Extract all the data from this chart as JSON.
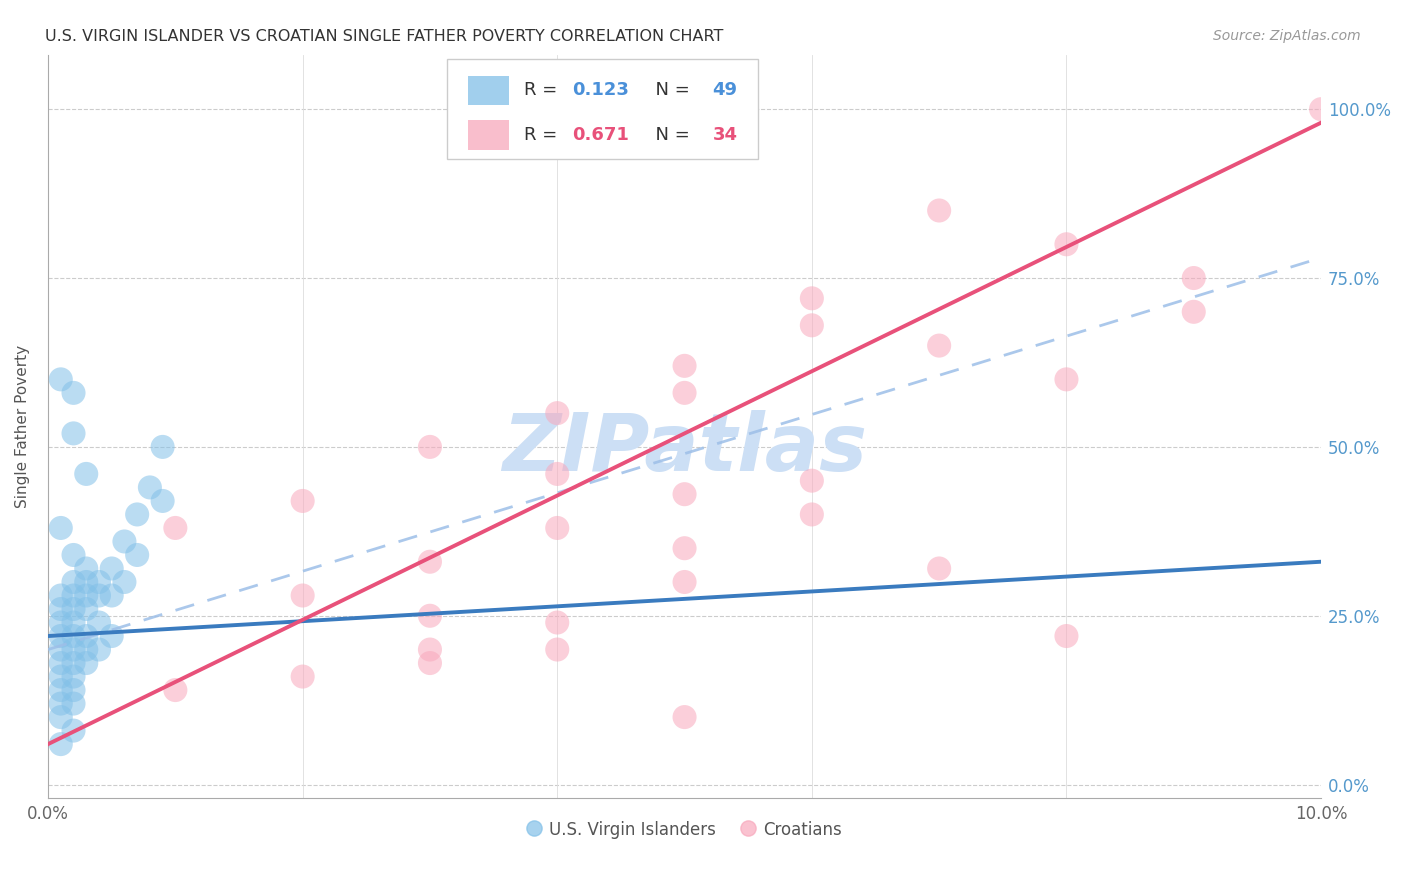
{
  "title": "U.S. VIRGIN ISLANDER VS CROATIAN SINGLE FATHER POVERTY CORRELATION CHART",
  "source": "Source: ZipAtlas.com",
  "ylabel": "Single Father Poverty",
  "ytick_labels": [
    "0.0%",
    "25.0%",
    "50.0%",
    "75.0%",
    "100.0%"
  ],
  "ytick_values": [
    0.0,
    0.25,
    0.5,
    0.75,
    1.0
  ],
  "xlim": [
    0.0,
    0.1
  ],
  "ylim": [
    -0.02,
    1.08
  ],
  "legend_bottom_label1": "U.S. Virgin Islanders",
  "legend_bottom_label2": "Croatians",
  "blue_color": "#82c0e8",
  "pink_color": "#f8a8bc",
  "blue_line_color": "#3a7bbf",
  "pink_line_color": "#e8517a",
  "dash_line_color": "#9dbfe8",
  "watermark": "ZIPatlas",
  "watermark_color": "#ccdff5",
  "blue_scatter_x": [
    0.001,
    0.001,
    0.001,
    0.001,
    0.001,
    0.001,
    0.001,
    0.001,
    0.001,
    0.002,
    0.002,
    0.002,
    0.002,
    0.002,
    0.002,
    0.002,
    0.002,
    0.002,
    0.002,
    0.003,
    0.003,
    0.003,
    0.003,
    0.003,
    0.003,
    0.003,
    0.004,
    0.004,
    0.004,
    0.004,
    0.005,
    0.005,
    0.005,
    0.006,
    0.006,
    0.007,
    0.007,
    0.008,
    0.009,
    0.009,
    0.001,
    0.002,
    0.001,
    0.002,
    0.001,
    0.002,
    0.003,
    0.001,
    0.002
  ],
  "blue_scatter_y": [
    0.2,
    0.22,
    0.24,
    0.26,
    0.28,
    0.18,
    0.16,
    0.14,
    0.12,
    0.22,
    0.24,
    0.26,
    0.28,
    0.3,
    0.2,
    0.18,
    0.16,
    0.14,
    0.12,
    0.26,
    0.28,
    0.3,
    0.32,
    0.22,
    0.2,
    0.18,
    0.3,
    0.28,
    0.24,
    0.2,
    0.32,
    0.28,
    0.22,
    0.36,
    0.3,
    0.4,
    0.34,
    0.44,
    0.5,
    0.42,
    0.6,
    0.58,
    0.1,
    0.08,
    0.06,
    0.52,
    0.46,
    0.38,
    0.34
  ],
  "pink_scatter_x": [
    0.04,
    0.04,
    0.04,
    0.05,
    0.05,
    0.05,
    0.06,
    0.06,
    0.07,
    0.07,
    0.08,
    0.08,
    0.09,
    0.03,
    0.03,
    0.03,
    0.02,
    0.02,
    0.01,
    0.01,
    0.1,
    0.09,
    0.06,
    0.05,
    0.04,
    0.03,
    0.07,
    0.08,
    0.05,
    0.04,
    0.03,
    0.06,
    0.02,
    0.05
  ],
  "pink_scatter_y": [
    0.38,
    0.55,
    0.2,
    0.43,
    0.62,
    0.35,
    0.45,
    0.68,
    0.65,
    0.85,
    0.8,
    0.22,
    0.7,
    0.5,
    0.33,
    0.2,
    0.42,
    0.28,
    0.38,
    0.14,
    1.0,
    0.75,
    0.4,
    0.3,
    0.24,
    0.18,
    0.32,
    0.6,
    0.58,
    0.46,
    0.25,
    0.72,
    0.16,
    0.1
  ],
  "blue_line_x": [
    0.0,
    0.1
  ],
  "blue_line_y": [
    0.22,
    0.33
  ],
  "pink_line_x": [
    0.0,
    0.1
  ],
  "pink_line_y": [
    0.06,
    0.98
  ],
  "dash_line_x": [
    0.0,
    0.1
  ],
  "dash_line_y": [
    0.2,
    0.78
  ]
}
